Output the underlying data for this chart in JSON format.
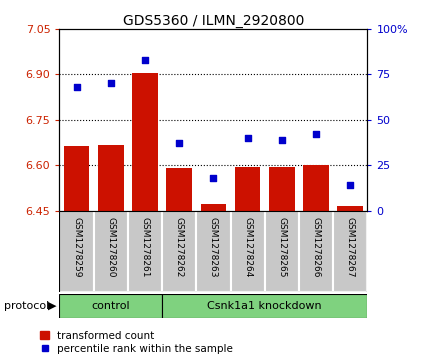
{
  "title": "GDS5360 / ILMN_2920800",
  "samples": [
    "GSM1278259",
    "GSM1278260",
    "GSM1278261",
    "GSM1278262",
    "GSM1278263",
    "GSM1278264",
    "GSM1278265",
    "GSM1278266",
    "GSM1278267"
  ],
  "bar_values": [
    6.665,
    6.668,
    6.905,
    6.592,
    6.473,
    6.595,
    6.594,
    6.6,
    6.465
  ],
  "dot_values_pct": [
    68,
    70,
    83,
    37,
    18,
    40,
    39,
    42,
    14
  ],
  "ylim_left": [
    6.45,
    7.05
  ],
  "ylim_right": [
    0,
    100
  ],
  "yticks_left": [
    6.45,
    6.6,
    6.75,
    6.9,
    7.05
  ],
  "yticks_right": [
    0,
    25,
    50,
    75,
    100
  ],
  "bar_color": "#cc1100",
  "dot_color": "#0000cc",
  "ctrl_count": 3,
  "kd_count": 6,
  "protocol_label": "protocol",
  "ctrl_label": "control",
  "kd_label": "Csnk1a1 knockdown",
  "legend_bar_label": "transformed count",
  "legend_dot_label": "percentile rank within the sample",
  "green_color": "#7FD27F",
  "gray_color": "#c8c8c8",
  "tick_label_color_left": "#cc2200",
  "tick_label_color_right": "#0000cc"
}
